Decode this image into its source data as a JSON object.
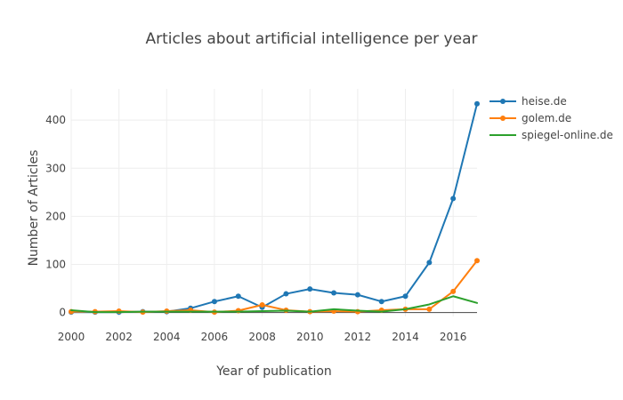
{
  "chart_data": {
    "type": "line",
    "title": "Articles about artificial intelligence per year",
    "xlabel": "Year of publication",
    "ylabel": "Number of Articles",
    "x": [
      2000,
      2001,
      2002,
      2003,
      2004,
      2005,
      2006,
      2007,
      2008,
      2009,
      2010,
      2011,
      2012,
      2013,
      2014,
      2015,
      2016,
      2017
    ],
    "xlim": [
      2000,
      2017
    ],
    "ylim": [
      -8,
      465
    ],
    "xticks": [
      2000,
      2002,
      2004,
      2006,
      2008,
      2010,
      2012,
      2014,
      2016
    ],
    "yticks": [
      0,
      100,
      200,
      300,
      400
    ],
    "grid": true,
    "legend_position": "top-right",
    "series": [
      {
        "name": "heise.de",
        "color": "#1f77b4",
        "markers": true,
        "values": [
          1,
          1,
          1,
          2,
          2,
          9,
          23,
          34,
          11,
          39,
          49,
          41,
          37,
          23,
          34,
          104,
          237,
          434
        ]
      },
      {
        "name": "golem.de",
        "color": "#ff7f0e",
        "markers": true,
        "values": [
          2,
          2,
          3,
          1,
          3,
          5,
          1,
          4,
          16,
          5,
          2,
          3,
          2,
          5,
          7,
          7,
          44,
          108
        ]
      },
      {
        "name": "spiegel-online.de",
        "color": "#2ca02c",
        "markers": false,
        "values": [
          5,
          1,
          1,
          2,
          2,
          2,
          2,
          2,
          3,
          4,
          2,
          7,
          4,
          2,
          7,
          17,
          34,
          20
        ]
      }
    ]
  }
}
